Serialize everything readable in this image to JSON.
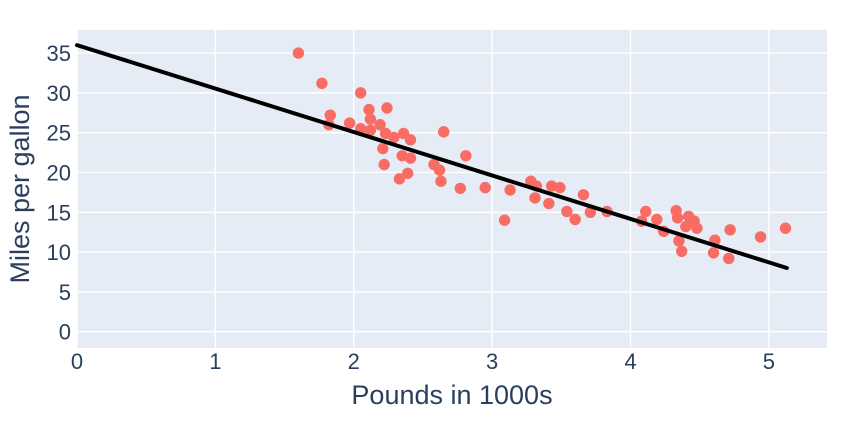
{
  "chart": {
    "colors": {
      "background": "#ffffff",
      "plot_background": "#e5ecf6",
      "grid": "#ffffff",
      "text": "#2a3f5f",
      "marker": "#f96c63",
      "trend_line": "#000000"
    }
  },
  "chart_data": {
    "type": "scatter",
    "title": "",
    "xlabel": "Pounds in 1000s",
    "ylabel": "Miles per gallon",
    "xlim": [
      0,
      5.42
    ],
    "ylim": [
      -2.05,
      37.9
    ],
    "xticks": [
      0,
      1,
      2,
      3,
      4,
      5
    ],
    "yticks": [
      0,
      5,
      10,
      15,
      20,
      25,
      30,
      35
    ],
    "grid": true,
    "legend": "none",
    "series": [
      {
        "name": "mpg-vs-weight-points",
        "type": "scatter",
        "points": [
          [
            1.6,
            35.0
          ],
          [
            1.77,
            31.2
          ],
          [
            1.82,
            26.0
          ],
          [
            1.83,
            27.2
          ],
          [
            1.97,
            26.2
          ],
          [
            2.05,
            30.0
          ],
          [
            2.05,
            25.5
          ],
          [
            2.12,
            25.3
          ],
          [
            2.11,
            27.9
          ],
          [
            2.24,
            28.1
          ],
          [
            2.12,
            26.7
          ],
          [
            2.19,
            26.0
          ],
          [
            2.23,
            24.9
          ],
          [
            2.29,
            24.4
          ],
          [
            2.36,
            24.9
          ],
          [
            2.41,
            24.1
          ],
          [
            2.65,
            25.1
          ],
          [
            2.21,
            23.0
          ],
          [
            2.35,
            22.1
          ],
          [
            2.41,
            21.8
          ],
          [
            2.22,
            21.0
          ],
          [
            2.39,
            19.9
          ],
          [
            2.33,
            19.2
          ],
          [
            2.58,
            21.0
          ],
          [
            2.62,
            20.3
          ],
          [
            2.63,
            18.9
          ],
          [
            2.81,
            22.1
          ],
          [
            2.77,
            18.0
          ],
          [
            2.95,
            18.1
          ],
          [
            3.13,
            17.8
          ],
          [
            3.09,
            14.0
          ],
          [
            3.28,
            18.9
          ],
          [
            3.32,
            18.3
          ],
          [
            3.31,
            16.8
          ],
          [
            3.43,
            18.3
          ],
          [
            3.49,
            18.1
          ],
          [
            3.41,
            16.1
          ],
          [
            3.54,
            15.1
          ],
          [
            3.6,
            14.1
          ],
          [
            3.66,
            17.2
          ],
          [
            3.71,
            15.0
          ],
          [
            3.83,
            15.1
          ],
          [
            4.08,
            13.9
          ],
          [
            4.11,
            15.1
          ],
          [
            4.19,
            14.1
          ],
          [
            4.24,
            12.6
          ],
          [
            4.33,
            15.2
          ],
          [
            4.34,
            14.3
          ],
          [
            4.42,
            14.5
          ],
          [
            4.46,
            13.9
          ],
          [
            4.4,
            13.2
          ],
          [
            4.48,
            13.0
          ],
          [
            4.35,
            11.4
          ],
          [
            4.37,
            10.1
          ],
          [
            4.61,
            11.5
          ],
          [
            4.6,
            9.9
          ],
          [
            4.71,
            9.2
          ],
          [
            4.72,
            12.8
          ],
          [
            4.94,
            11.9
          ],
          [
            5.12,
            13.0
          ]
        ]
      },
      {
        "name": "regression-line",
        "type": "line",
        "x": [
          0,
          5.13
        ],
        "y": [
          36.0,
          8.0
        ]
      }
    ]
  }
}
